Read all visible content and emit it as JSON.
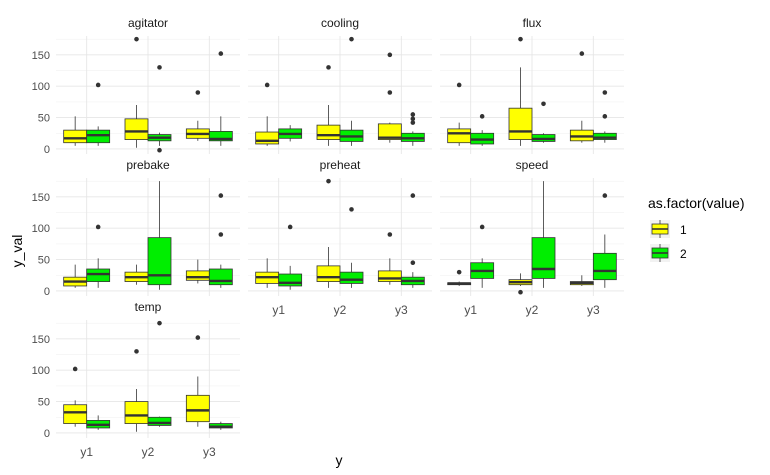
{
  "chart_data": {
    "type": "boxplot",
    "xlabel": "y",
    "ylabel": "y_val",
    "categories": [
      "y1",
      "y2",
      "y3"
    ],
    "yticks": [
      0,
      50,
      100,
      150
    ],
    "ylim": [
      -8,
      180
    ],
    "legend": {
      "title": "as.factor(value)",
      "position": "right",
      "items": [
        {
          "label": "1",
          "color": "#FFFF00"
        },
        {
          "label": "2",
          "color": "#00EE00"
        }
      ]
    },
    "grid": true,
    "facets": [
      {
        "name": "agitator",
        "groups": [
          {
            "category": "y1",
            "value": "1",
            "stats": [
              5,
              10,
              17,
              30,
              52
            ],
            "outliers": []
          },
          {
            "category": "y1",
            "value": "2",
            "stats": [
              5,
              10,
              22,
              30,
              36
            ],
            "outliers": [
              102
            ]
          },
          {
            "category": "y2",
            "value": "1",
            "stats": [
              2,
              15,
              28,
              48,
              70
            ],
            "outliers": [
              175
            ]
          },
          {
            "category": "y2",
            "value": "2",
            "stats": [
              5,
              13,
              18,
              23,
              26
            ],
            "outliers": [
              130,
              -2
            ]
          },
          {
            "category": "y3",
            "value": "1",
            "stats": [
              13,
              17,
              24,
              32,
              45
            ],
            "outliers": [
              90
            ]
          },
          {
            "category": "y3",
            "value": "2",
            "stats": [
              5,
              13,
              16,
              28,
              52
            ],
            "outliers": [
              152
            ]
          }
        ]
      },
      {
        "name": "cooling",
        "groups": [
          {
            "category": "y1",
            "value": "1",
            "stats": [
              5,
              8,
              13,
              27,
              52
            ],
            "outliers": [
              102
            ]
          },
          {
            "category": "y1",
            "value": "2",
            "stats": [
              12,
              17,
              24,
              32,
              38
            ],
            "outliers": []
          },
          {
            "category": "y2",
            "value": "1",
            "stats": [
              5,
              15,
              22,
              38,
              70
            ],
            "outliers": [
              130
            ]
          },
          {
            "category": "y2",
            "value": "2",
            "stats": [
              5,
              12,
              20,
              30,
              45
            ],
            "outliers": [
              175
            ]
          },
          {
            "category": "y3",
            "value": "1",
            "stats": [
              10,
              15,
              18,
              40,
              42
            ],
            "outliers": [
              150,
              90
            ]
          },
          {
            "category": "y3",
            "value": "2",
            "stats": [
              5,
              12,
              17,
              25,
              28
            ],
            "outliers": [
              55,
              48,
              42
            ]
          }
        ]
      },
      {
        "name": "flux",
        "groups": [
          {
            "category": "y1",
            "value": "1",
            "stats": [
              5,
              10,
              25,
              32,
              42
            ],
            "outliers": [
              102
            ]
          },
          {
            "category": "y1",
            "value": "2",
            "stats": [
              5,
              8,
              15,
              25,
              30
            ],
            "outliers": [
              52
            ]
          },
          {
            "category": "y2",
            "value": "1",
            "stats": [
              5,
              15,
              28,
              65,
              130
            ],
            "outliers": [
              175
            ]
          },
          {
            "category": "y2",
            "value": "2",
            "stats": [
              10,
              12,
              16,
              23,
              25
            ],
            "outliers": [
              72
            ]
          },
          {
            "category": "y3",
            "value": "1",
            "stats": [
              10,
              13,
              20,
              30,
              45
            ],
            "outliers": [
              152
            ]
          },
          {
            "category": "y3",
            "value": "2",
            "stats": [
              10,
              15,
              18,
              25,
              28
            ],
            "outliers": [
              90,
              52
            ]
          }
        ]
      },
      {
        "name": "prebake",
        "groups": [
          {
            "category": "y1",
            "value": "1",
            "stats": [
              5,
              8,
              15,
              22,
              42
            ],
            "outliers": []
          },
          {
            "category": "y1",
            "value": "2",
            "stats": [
              5,
              15,
              27,
              35,
              52
            ],
            "outliers": [
              102
            ]
          },
          {
            "category": "y2",
            "value": "1",
            "stats": [
              10,
              15,
              22,
              30,
              42
            ],
            "outliers": []
          },
          {
            "category": "y2",
            "value": "2",
            "stats": [
              2,
              10,
              25,
              85,
              175
            ],
            "outliers": []
          },
          {
            "category": "y3",
            "value": "1",
            "stats": [
              12,
              17,
              22,
              32,
              50
            ],
            "outliers": []
          },
          {
            "category": "y3",
            "value": "2",
            "stats": [
              5,
              10,
              16,
              35,
              42
            ],
            "outliers": [
              152,
              90
            ]
          }
        ]
      },
      {
        "name": "preheat",
        "groups": [
          {
            "category": "y1",
            "value": "1",
            "stats": [
              5,
              12,
              22,
              30,
              52
            ],
            "outliers": []
          },
          {
            "category": "y1",
            "value": "2",
            "stats": [
              2,
              8,
              13,
              27,
              40
            ],
            "outliers": [
              102
            ]
          },
          {
            "category": "y2",
            "value": "1",
            "stats": [
              5,
              15,
              22,
              40,
              70
            ],
            "outliers": [
              175
            ]
          },
          {
            "category": "y2",
            "value": "2",
            "stats": [
              5,
              12,
              18,
              30,
              45
            ],
            "outliers": [
              130
            ]
          },
          {
            "category": "y3",
            "value": "1",
            "stats": [
              10,
              15,
              20,
              32,
              52
            ],
            "outliers": [
              90
            ]
          },
          {
            "category": "y3",
            "value": "2",
            "stats": [
              5,
              10,
              16,
              22,
              30
            ],
            "outliers": [
              152,
              45
            ]
          }
        ]
      },
      {
        "name": "speed",
        "groups": [
          {
            "category": "y1",
            "value": "1",
            "stats": [
              8,
              10,
              12,
              13,
              15
            ],
            "outliers": [
              30
            ]
          },
          {
            "category": "y1",
            "value": "2",
            "stats": [
              5,
              20,
              32,
              45,
              52
            ],
            "outliers": [
              102
            ]
          },
          {
            "category": "y2",
            "value": "1",
            "stats": [
              8,
              10,
              14,
              18,
              28
            ],
            "outliers": [
              -2
            ]
          },
          {
            "category": "y2",
            "value": "2",
            "stats": [
              5,
              20,
              35,
              85,
              175
            ],
            "outliers": []
          },
          {
            "category": "y3",
            "value": "1",
            "stats": [
              8,
              10,
              13,
              15,
              25
            ],
            "outliers": []
          },
          {
            "category": "y3",
            "value": "2",
            "stats": [
              5,
              18,
              32,
              60,
              90
            ],
            "outliers": [
              152
            ]
          }
        ]
      },
      {
        "name": "temp",
        "groups": [
          {
            "category": "y1",
            "value": "1",
            "stats": [
              10,
              15,
              33,
              45,
              52
            ],
            "outliers": [
              102
            ]
          },
          {
            "category": "y1",
            "value": "2",
            "stats": [
              5,
              8,
              13,
              20,
              28
            ],
            "outliers": []
          },
          {
            "category": "y2",
            "value": "1",
            "stats": [
              2,
              15,
              28,
              50,
              70
            ],
            "outliers": [
              130
            ]
          },
          {
            "category": "y2",
            "value": "2",
            "stats": [
              10,
              12,
              16,
              25,
              26
            ],
            "outliers": [
              175
            ]
          },
          {
            "category": "y3",
            "value": "1",
            "stats": [
              10,
              18,
              36,
              60,
              90
            ],
            "outliers": [
              152
            ]
          },
          {
            "category": "y3",
            "value": "2",
            "stats": [
              5,
              8,
              10,
              15,
              18
            ],
            "outliers": []
          }
        ]
      }
    ]
  }
}
